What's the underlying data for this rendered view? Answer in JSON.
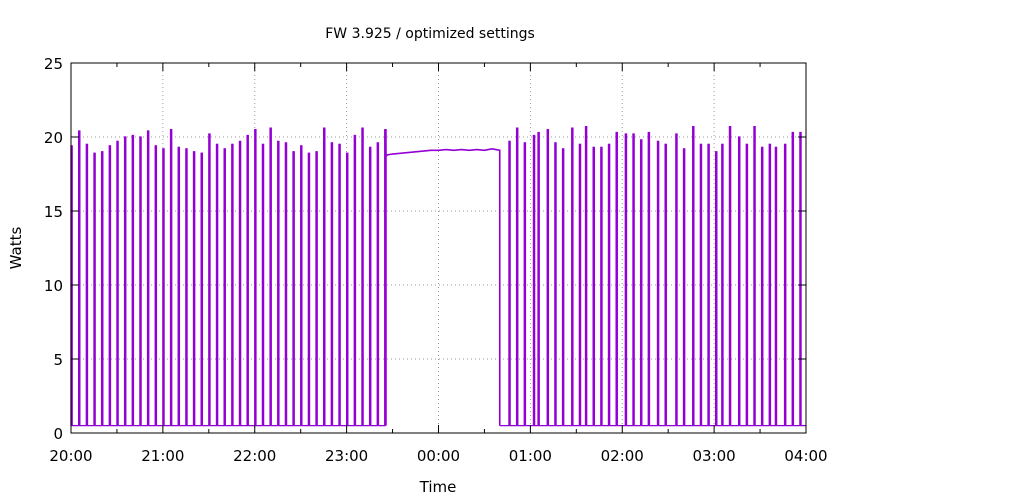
{
  "chart_data": {
    "type": "line",
    "title": "FW 3.925 / optimized settings",
    "xlabel": "Time",
    "ylabel": "Watts",
    "xlim": [
      "20:00",
      "04:00"
    ],
    "ylim": [
      0,
      25
    ],
    "x_ticks": [
      "20:00",
      "21:00",
      "22:00",
      "23:00",
      "00:00",
      "01:00",
      "02:00",
      "03:00",
      "04:00"
    ],
    "y_ticks": [
      "0",
      "5",
      "10",
      "15",
      "20",
      "25"
    ],
    "grid": true,
    "legend": "none",
    "line_color": "#9400d3",
    "baseline_watts": 0.5,
    "series": [
      {
        "pulses_before": {
          "times": [
            "20:00",
            "20:05",
            "20:10",
            "20:15",
            "20:20",
            "20:25",
            "20:30",
            "20:35",
            "20:40",
            "20:45",
            "20:50",
            "20:55",
            "21:00",
            "21:05",
            "21:10",
            "21:15",
            "21:20",
            "21:25",
            "21:30",
            "21:35",
            "21:40",
            "21:45",
            "21:50",
            "21:55",
            "22:00",
            "22:05",
            "22:10",
            "22:15",
            "22:20",
            "22:25",
            "22:30",
            "22:35",
            "22:40",
            "22:45",
            "22:50",
            "22:55",
            "23:00",
            "23:05",
            "23:10",
            "23:15",
            "23:20",
            "23:25"
          ],
          "peaks": [
            19.4,
            20.4,
            19.5,
            18.9,
            19.0,
            19.4,
            19.7,
            20.0,
            20.1,
            20.0,
            20.4,
            19.4,
            19.2,
            20.5,
            19.3,
            19.2,
            19.0,
            18.9,
            20.2,
            19.5,
            19.2,
            19.5,
            19.7,
            20.1,
            20.5,
            19.5,
            20.6,
            19.7,
            19.6,
            19.0,
            19.4,
            18.9,
            19.0,
            20.6,
            19.6,
            19.5,
            18.9,
            20.1,
            20.6,
            19.3,
            19.6,
            20.5
          ]
        },
        "continuous": {
          "times": [
            "23:25",
            "23:27",
            "23:30",
            "23:35",
            "23:40",
            "23:45",
            "23:50",
            "23:55",
            "00:00",
            "00:05",
            "00:10",
            "00:15",
            "00:20",
            "00:25",
            "00:30",
            "00:35",
            "00:40"
          ],
          "values": [
            18.7,
            18.8,
            18.85,
            18.9,
            18.95,
            19.0,
            19.05,
            19.1,
            19.1,
            19.15,
            19.1,
            19.15,
            19.1,
            19.15,
            19.1,
            19.2,
            19.1
          ]
        },
        "pulses_after": {
          "times": [
            "00:46",
            "00:51",
            "00:56",
            "01:02",
            "01:05",
            "01:11",
            "01:16",
            "01:21",
            "01:27",
            "01:32",
            "01:36",
            "01:41",
            "01:46",
            "01:51",
            "01:56",
            "02:02",
            "02:07",
            "02:12",
            "02:17",
            "02:23",
            "02:28",
            "02:35",
            "02:40",
            "02:46",
            "02:51",
            "02:56",
            "03:01",
            "03:05",
            "03:10",
            "03:16",
            "03:21",
            "03:26",
            "03:31",
            "03:36",
            "03:40",
            "03:46",
            "03:51",
            "03:56"
          ],
          "peaks": [
            19.7,
            20.6,
            19.6,
            20.1,
            20.3,
            20.5,
            19.6,
            19.2,
            20.6,
            19.5,
            20.7,
            19.3,
            19.3,
            19.5,
            20.3,
            20.2,
            20.2,
            19.8,
            20.3,
            19.7,
            19.5,
            20.2,
            19.2,
            20.7,
            19.5,
            19.5,
            19.0,
            19.5,
            20.7,
            20.0,
            19.5,
            20.7,
            19.3,
            19.5,
            19.3,
            19.5,
            20.3,
            20.3
          ]
        }
      }
    ]
  }
}
